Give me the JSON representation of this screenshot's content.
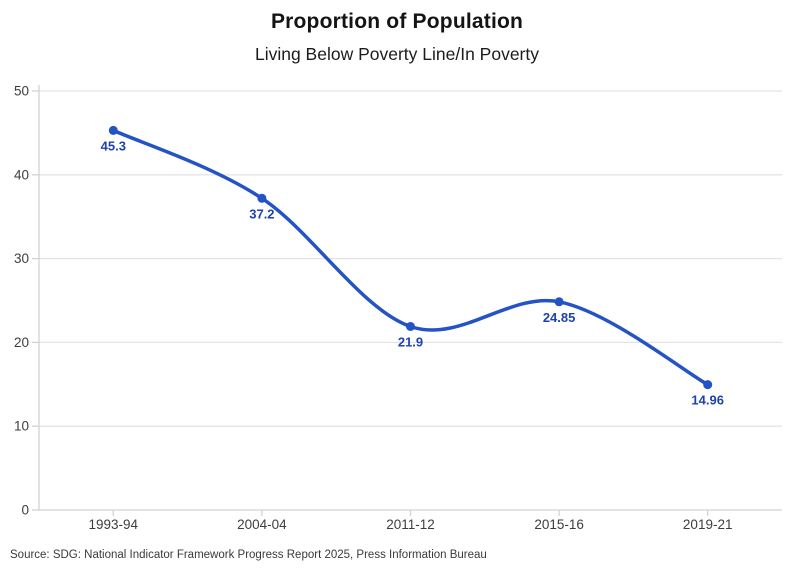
{
  "header": {
    "title": "Proportion of Population",
    "subtitle": "Living Below Poverty Line/In Poverty"
  },
  "footer": {
    "source": "Source: SDG: National Indicator Framework Progress Report 2025, Press Information Bureau"
  },
  "chart_data": {
    "type": "line",
    "title": "Proportion of Population",
    "subtitle": "Living Below Poverty Line/In Poverty",
    "categories": [
      "1993-94",
      "2004-04",
      "2011-12",
      "2015-16",
      "2019-21"
    ],
    "values": [
      45.3,
      37.2,
      21.9,
      24.85,
      14.96
    ],
    "point_labels": [
      "45.3",
      "37.2",
      "21.9",
      "24.85",
      "14.96"
    ],
    "xlabel": "",
    "ylabel": "",
    "ylim": [
      0,
      50
    ],
    "yticks": [
      0,
      10,
      20,
      30,
      40,
      50
    ],
    "grid": "horizontal",
    "legend": "none",
    "smooth": true,
    "colors": {
      "line": "#2353c4",
      "marker": "#2353c4",
      "point_label": "#1d43ad",
      "grid": "#e4e4e4",
      "axis": "#d2d2d2",
      "tick_label": "#3d3d3d"
    }
  }
}
